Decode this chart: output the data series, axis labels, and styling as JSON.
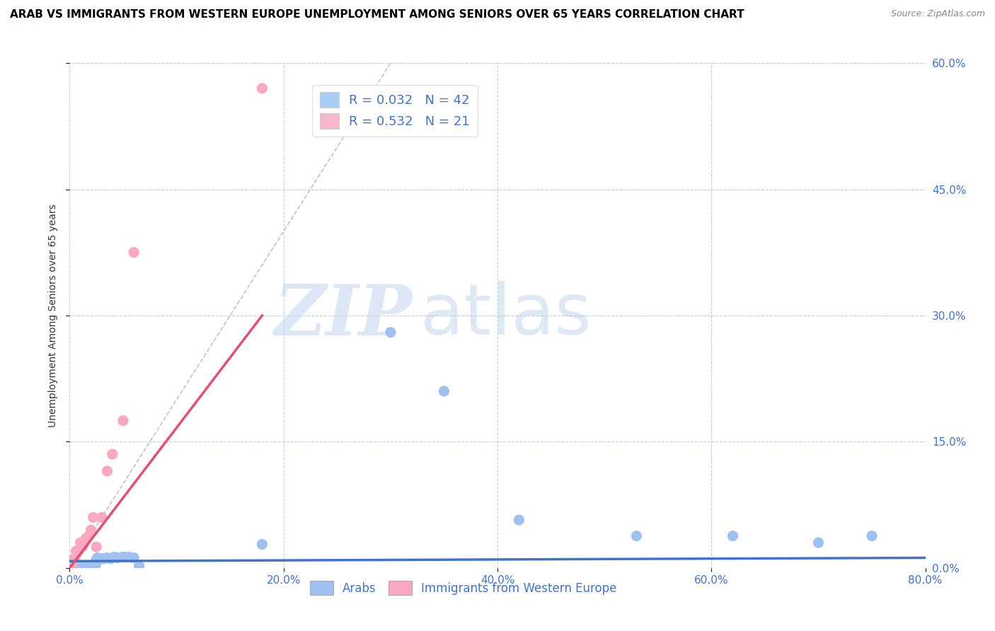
{
  "title": "ARAB VS IMMIGRANTS FROM WESTERN EUROPE UNEMPLOYMENT AMONG SENIORS OVER 65 YEARS CORRELATION CHART",
  "source": "Source: ZipAtlas.com",
  "xlim": [
    0,
    0.8
  ],
  "ylim": [
    0,
    0.6
  ],
  "watermark_zip": "ZIP",
  "watermark_atlas": "atlas",
  "legend_R_N": [
    {
      "R": "0.032",
      "N": "42",
      "color": "#aaccf8"
    },
    {
      "R": "0.532",
      "N": "21",
      "color": "#f8b8cc"
    }
  ],
  "arab_points": [
    [
      0.0,
      0.0
    ],
    [
      0.002,
      0.001
    ],
    [
      0.003,
      0.002
    ],
    [
      0.005,
      0.001
    ],
    [
      0.006,
      0.002
    ],
    [
      0.007,
      0.003
    ],
    [
      0.008,
      0.001
    ],
    [
      0.009,
      0.002
    ],
    [
      0.01,
      0.001
    ],
    [
      0.011,
      0.002
    ],
    [
      0.012,
      0.001
    ],
    [
      0.013,
      0.003
    ],
    [
      0.014,
      0.002
    ],
    [
      0.015,
      0.001
    ],
    [
      0.016,
      0.002
    ],
    [
      0.017,
      0.003
    ],
    [
      0.018,
      0.002
    ],
    [
      0.02,
      0.003
    ],
    [
      0.022,
      0.002
    ],
    [
      0.024,
      0.003
    ],
    [
      0.025,
      0.01
    ],
    [
      0.026,
      0.012
    ],
    [
      0.028,
      0.01
    ],
    [
      0.03,
      0.011
    ],
    [
      0.032,
      0.011
    ],
    [
      0.035,
      0.012
    ],
    [
      0.038,
      0.011
    ],
    [
      0.04,
      0.012
    ],
    [
      0.042,
      0.013
    ],
    [
      0.045,
      0.012
    ],
    [
      0.05,
      0.013
    ],
    [
      0.055,
      0.013
    ],
    [
      0.06,
      0.012
    ],
    [
      0.065,
      0.002
    ],
    [
      0.18,
      0.028
    ],
    [
      0.3,
      0.28
    ],
    [
      0.35,
      0.21
    ],
    [
      0.42,
      0.057
    ],
    [
      0.53,
      0.038
    ],
    [
      0.62,
      0.038
    ],
    [
      0.7,
      0.03
    ],
    [
      0.75,
      0.038
    ]
  ],
  "western_europe_points": [
    [
      0.002,
      0.002
    ],
    [
      0.004,
      0.01
    ],
    [
      0.005,
      0.012
    ],
    [
      0.006,
      0.02
    ],
    [
      0.007,
      0.018
    ],
    [
      0.008,
      0.02
    ],
    [
      0.009,
      0.022
    ],
    [
      0.01,
      0.03
    ],
    [
      0.012,
      0.025
    ],
    [
      0.013,
      0.028
    ],
    [
      0.015,
      0.035
    ],
    [
      0.018,
      0.038
    ],
    [
      0.02,
      0.045
    ],
    [
      0.022,
      0.06
    ],
    [
      0.025,
      0.025
    ],
    [
      0.03,
      0.06
    ],
    [
      0.035,
      0.115
    ],
    [
      0.04,
      0.135
    ],
    [
      0.05,
      0.175
    ],
    [
      0.06,
      0.375
    ],
    [
      0.18,
      0.57
    ]
  ],
  "arab_line": {
    "x0": 0.0,
    "x1": 0.8,
    "y0": 0.008,
    "y1": 0.012
  },
  "western_line": {
    "x0": 0.0,
    "x1": 0.18,
    "y0": 0.0,
    "y1": 0.3
  },
  "arab_line_color": "#4472c4",
  "western_line_color": "#e05070",
  "arab_scatter_color": "#a0c0f0",
  "western_scatter_color": "#f8a8c0",
  "background_color": "#ffffff",
  "grid_color": "#c0cce0"
}
